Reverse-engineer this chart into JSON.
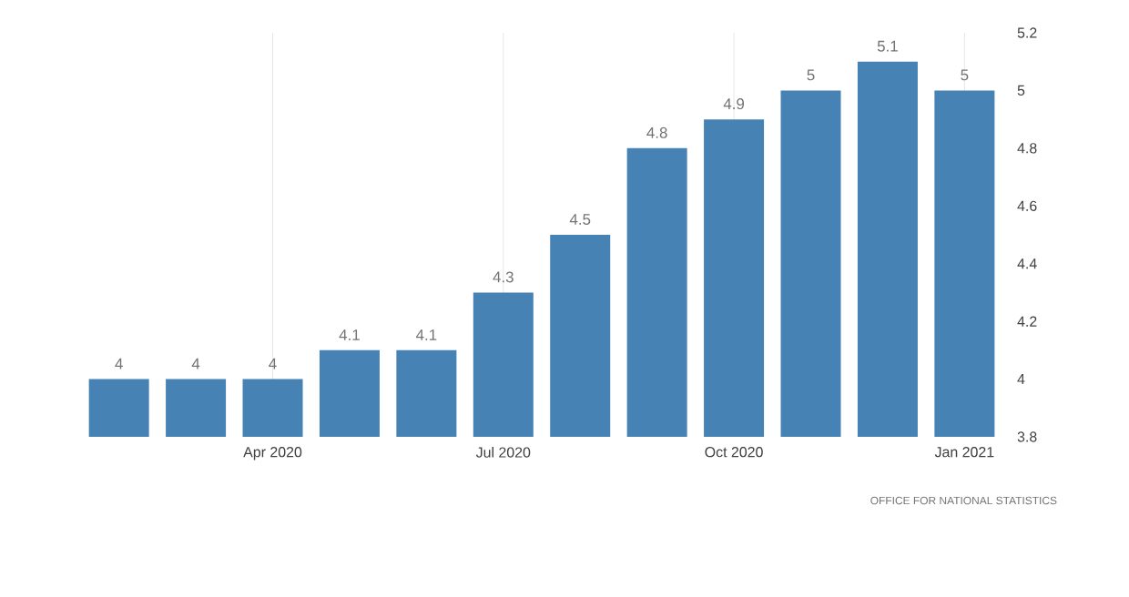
{
  "chart_data": {
    "type": "bar",
    "categories": [
      null,
      null,
      "Apr 2020",
      null,
      null,
      "Jul 2020",
      null,
      null,
      "Oct 2020",
      null,
      null,
      "Jan 2021"
    ],
    "values": [
      4,
      4,
      4,
      4.1,
      4.1,
      4.3,
      4.5,
      4.8,
      4.9,
      5,
      5.1,
      5
    ],
    "color": "#4682b4",
    "ylim": [
      3.8,
      5.2
    ],
    "yticks": [
      3.8,
      4,
      4.2,
      4.4,
      4.6,
      4.8,
      5,
      5.2
    ],
    "grid": "x",
    "data_labels": true,
    "annotations": [
      "OFFICE FOR NATIONAL STATISTICS"
    ]
  }
}
